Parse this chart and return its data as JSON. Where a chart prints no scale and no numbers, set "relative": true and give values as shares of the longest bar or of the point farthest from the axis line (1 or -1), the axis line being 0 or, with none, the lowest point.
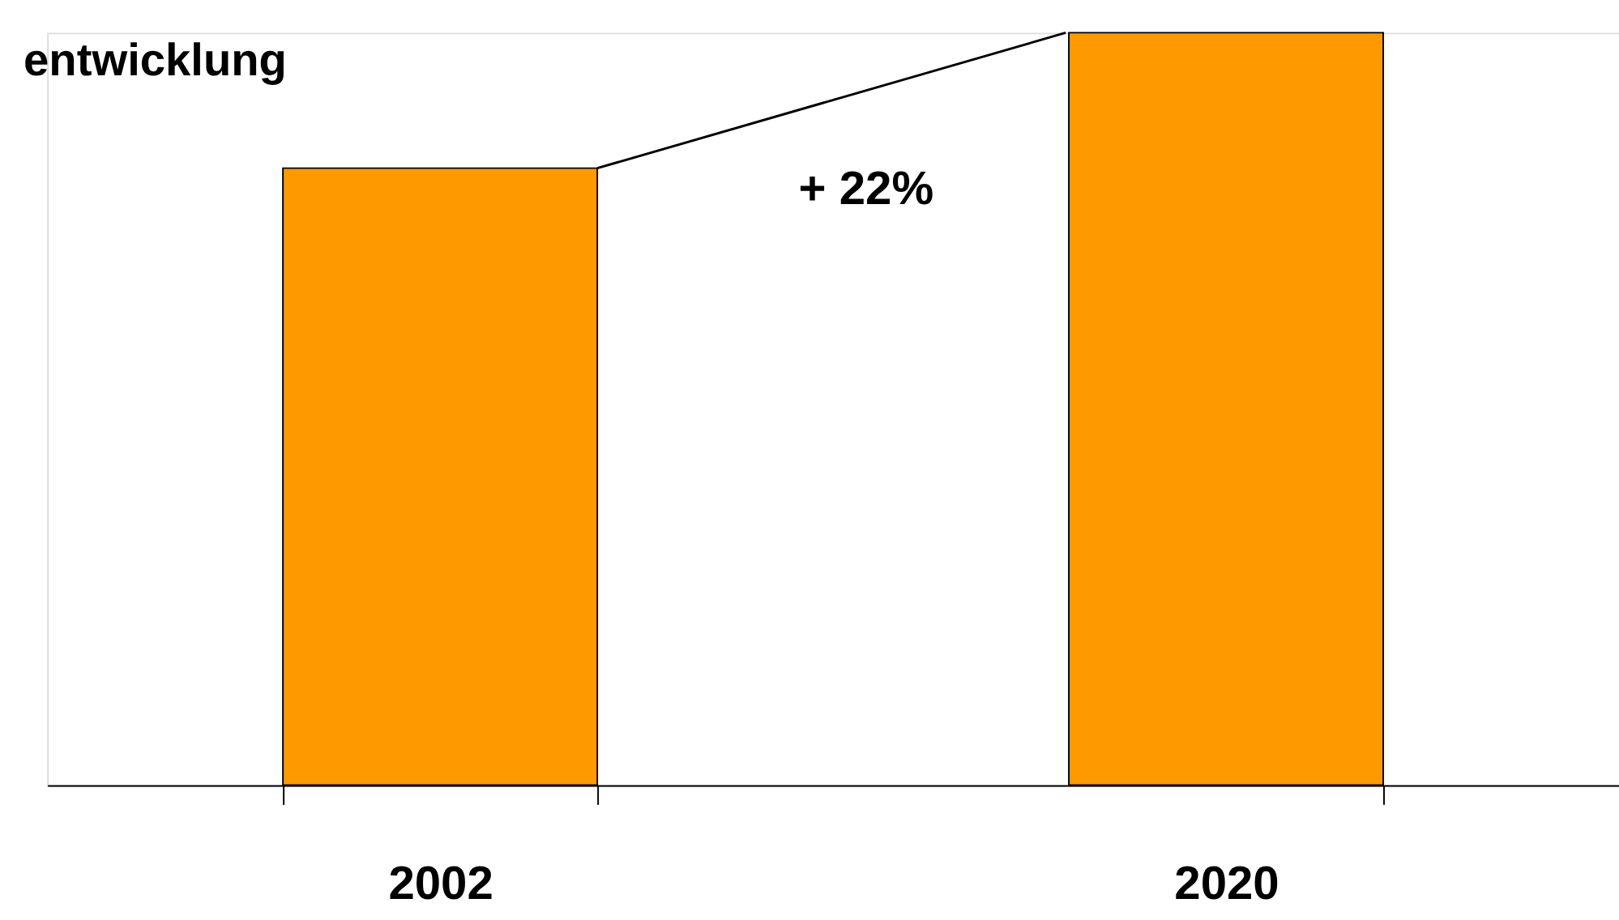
{
  "chart_data": {
    "type": "bar",
    "title": "entwicklung",
    "categories": [
      "2002",
      "2020"
    ],
    "values": [
      0.82,
      1
    ],
    "color": "#ff9900",
    "relative": true,
    "annotations": [
      "+ 22%"
    ],
    "grid": false
  }
}
